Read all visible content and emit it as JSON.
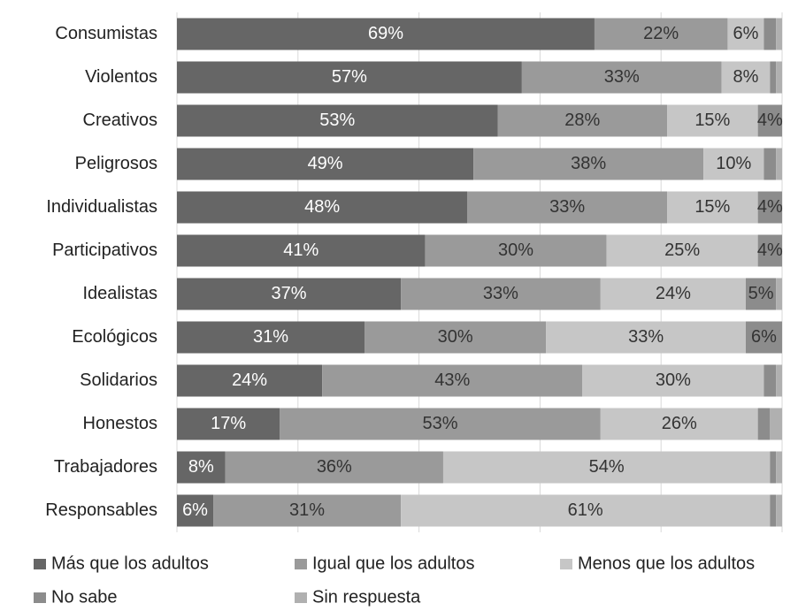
{
  "chart_data": {
    "type": "stacked_barh",
    "categories": [
      "Consumistas",
      "Violentos",
      "Creativos",
      "Peligrosos",
      "Individualistas",
      "Participativos",
      "Idealistas",
      "Ecológicos",
      "Solidarios",
      "Honestos",
      "Trabajadores",
      "Responsables"
    ],
    "series": [
      {
        "name": "Más que los adultos",
        "color": "#666666",
        "values": [
          69,
          57,
          53,
          49,
          48,
          41,
          37,
          31,
          24,
          17,
          8,
          6
        ],
        "value_labels": [
          "69%",
          "57%",
          "53%",
          "49%",
          "48%",
          "41%",
          "37%",
          "31%",
          "24%",
          "17%",
          "8%",
          "6%"
        ]
      },
      {
        "name": "Igual que los adultos",
        "color": "#9a9a9a",
        "values": [
          22,
          33,
          28,
          38,
          33,
          30,
          33,
          30,
          43,
          53,
          36,
          31
        ],
        "value_labels": [
          "22%",
          "33%",
          "28%",
          "38%",
          "33%",
          "30%",
          "33%",
          "30%",
          "43%",
          "53%",
          "36%",
          "31%"
        ]
      },
      {
        "name": "Menos que los adultos",
        "color": "#c6c6c6",
        "values": [
          6,
          8,
          15,
          10,
          15,
          25,
          24,
          33,
          30,
          26,
          54,
          61
        ],
        "value_labels": [
          "6%",
          "8%",
          "15%",
          "10%",
          "15%",
          "25%",
          "24%",
          "33%",
          "30%",
          "26%",
          "54%",
          "61%"
        ]
      },
      {
        "name": "No sabe",
        "color": "#8c8c8c",
        "values": [
          2,
          1,
          4,
          2,
          4,
          4,
          5,
          6,
          2,
          2,
          1,
          1
        ],
        "value_labels": [
          null,
          null,
          "4%",
          null,
          "4%",
          "4%",
          "5%",
          "6%",
          null,
          null,
          null,
          null
        ]
      },
      {
        "name": "Sin respuesta",
        "color": "#b0b0b0",
        "values": [
          1,
          1,
          0,
          1,
          0,
          0,
          1,
          0,
          1,
          2,
          1,
          1
        ],
        "value_labels": [
          null,
          null,
          null,
          null,
          null,
          null,
          null,
          null,
          null,
          null,
          null,
          null
        ]
      }
    ],
    "xlim": [
      0,
      100
    ],
    "xticks": [
      0,
      20,
      40,
      60,
      80,
      100
    ],
    "grid": true
  }
}
